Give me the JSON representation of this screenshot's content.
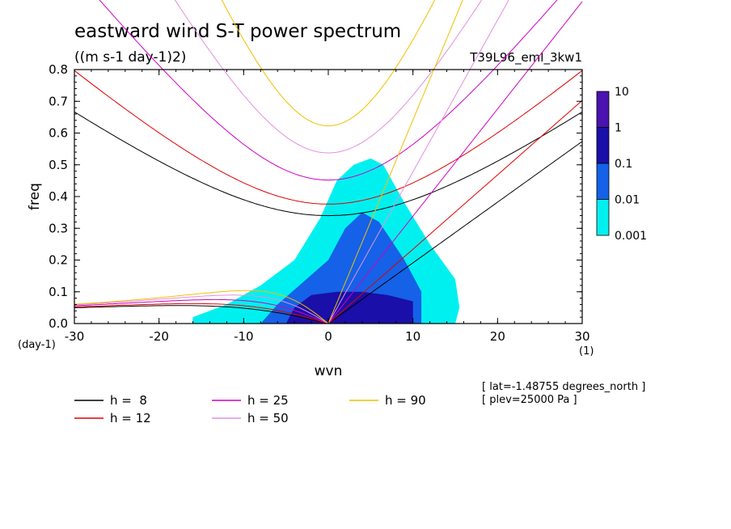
{
  "chart_data": {
    "type": "heatmap",
    "title": "eastward wind S-T power spectrum",
    "subtitle": "((m s-1 day-1)2)",
    "run_label": "T39L96_eml_3kw1",
    "xlabel": "wvn",
    "ylabel": "freq",
    "x_unit": "(1)",
    "y_unit": "(day-1)",
    "xlim": [
      -30,
      30
    ],
    "ylim": [
      0,
      0.8
    ],
    "x_ticks": [
      -30,
      -20,
      -10,
      0,
      10,
      20,
      30
    ],
    "x_tick_labels": [
      "-30",
      "-20",
      "-10",
      "0",
      "10",
      "20",
      "30"
    ],
    "y_ticks": [
      0.0,
      0.1,
      0.2,
      0.3,
      0.4,
      0.5,
      0.6,
      0.7,
      0.8
    ],
    "y_tick_labels": [
      "0.0",
      "0.1",
      "0.2",
      "0.3",
      "0.4",
      "0.5",
      "0.6",
      "0.7",
      "0.8"
    ],
    "colorbar": {
      "levels": [
        "10",
        "1",
        "0.1",
        "0.01",
        "0.001"
      ],
      "colors": [
        "#4a12b0",
        "#1a0fa8",
        "#1561e8",
        "#00f0f0"
      ]
    },
    "shading_regions": [
      {
        "level": "0.001",
        "color": "#00f0f0",
        "polygon": [
          [
            -16,
            0.02
          ],
          [
            -12,
            0.06
          ],
          [
            -8,
            0.12
          ],
          [
            -4,
            0.2
          ],
          [
            -1,
            0.33
          ],
          [
            1,
            0.45
          ],
          [
            3,
            0.5
          ],
          [
            5,
            0.52
          ],
          [
            6.5,
            0.5
          ],
          [
            9,
            0.38
          ],
          [
            12,
            0.25
          ],
          [
            15,
            0.14
          ],
          [
            15.5,
            0.05
          ],
          [
            15,
            0.0
          ],
          [
            -16,
            0.0
          ]
        ]
      },
      {
        "level": "0.01",
        "color": "#1561e8",
        "polygon": [
          [
            -8,
            0.0
          ],
          [
            -6,
            0.06
          ],
          [
            -3,
            0.13
          ],
          [
            0,
            0.2
          ],
          [
            2,
            0.3
          ],
          [
            4,
            0.35
          ],
          [
            6,
            0.32
          ],
          [
            9,
            0.2
          ],
          [
            11,
            0.1
          ],
          [
            11,
            0.0
          ]
        ]
      },
      {
        "level": "0.1",
        "color": "#1a0fa8",
        "polygon": [
          [
            -5,
            0.0
          ],
          [
            -4,
            0.05
          ],
          [
            -2,
            0.09
          ],
          [
            1,
            0.1
          ],
          [
            4,
            0.1
          ],
          [
            7,
            0.09
          ],
          [
            10,
            0.07
          ],
          [
            10,
            0.0
          ]
        ]
      }
    ],
    "dispersion_curves": [
      {
        "name": "h =  8",
        "color": "#000000",
        "equivalent_depth_m": 8
      },
      {
        "name": "h = 12",
        "color": "#e00000",
        "equivalent_depth_m": 12
      },
      {
        "name": "h = 25",
        "color": "#d000c0",
        "equivalent_depth_m": 25
      },
      {
        "name": "h = 50",
        "color": "#e090e0",
        "equivalent_depth_m": 50
      },
      {
        "name": "h = 90",
        "color": "#f0c000",
        "equivalent_depth_m": 90
      }
    ],
    "info_lines": [
      "[ lat=-1.48755 degrees_north ]",
      "[ plev=25000 Pa ]"
    ],
    "grid": false
  }
}
